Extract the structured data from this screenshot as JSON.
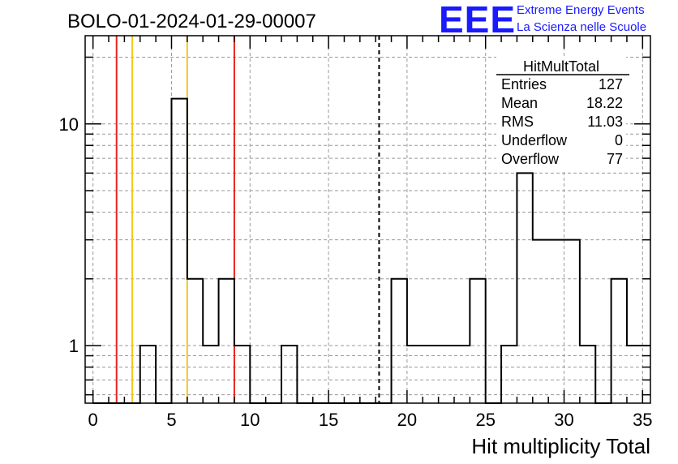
{
  "header": {
    "run_title": "BOLO-01-2024-01-29-00007",
    "logo_text": "EEE",
    "logo_line1": "Extreme Energy Events",
    "logo_line2": "La Scienza nelle Scuole"
  },
  "stats": {
    "title": "HitMultTotal",
    "rows": [
      {
        "label": "Entries",
        "value": "127"
      },
      {
        "label": "Mean",
        "value": "18.22"
      },
      {
        "label": "RMS",
        "value": "11.03"
      },
      {
        "label": "Underflow",
        "value": "0"
      },
      {
        "label": "Overflow",
        "value": "77"
      }
    ]
  },
  "chart_data": {
    "type": "histogram",
    "xlabel": "Hit multiplicity Total",
    "ylabel": "",
    "xlim": [
      -0.5,
      35.5
    ],
    "ylim": [
      0.55,
      25
    ],
    "log_y": true,
    "grid": true,
    "bin_width": 1,
    "bin_low_edges": [
      0,
      1,
      2,
      3,
      4,
      5,
      6,
      7,
      8,
      9,
      10,
      11,
      12,
      13,
      14,
      15,
      16,
      17,
      18,
      19,
      20,
      21,
      22,
      23,
      24,
      25,
      26,
      27,
      28,
      29,
      30,
      31,
      32,
      33,
      34,
      35
    ],
    "bin_centers": [
      0.5,
      1.5,
      2.5,
      3.5,
      4.5,
      5.5,
      6.5,
      7.5,
      8.5,
      9.5,
      10.5,
      11.5,
      12.5,
      13.5,
      14.5,
      15.5,
      16.5,
      17.5,
      18.5,
      19.5,
      20.5,
      21.5,
      22.5,
      23.5,
      24.5,
      25.5,
      26.5,
      27.5,
      28.5,
      29.5,
      30.5,
      31.5,
      32.5,
      33.5,
      34.5,
      35.5
    ],
    "counts": [
      0,
      0,
      0,
      1,
      0,
      13,
      2,
      1,
      2,
      1,
      0,
      0,
      1,
      0,
      0,
      0,
      0,
      0,
      0,
      2,
      1,
      1,
      1,
      1,
      2,
      0,
      1,
      6,
      3,
      3,
      3,
      1,
      0,
      2,
      1,
      1
    ],
    "x_ticks": [
      0,
      5,
      10,
      15,
      20,
      25,
      30,
      35
    ],
    "x_tick_labels": [
      "0",
      "5",
      "10",
      "15",
      "20",
      "25",
      "30",
      "35"
    ],
    "y_ticks": [
      1,
      10
    ],
    "y_tick_labels": [
      "1",
      "10"
    ],
    "vertical_lines": [
      {
        "x": 1.5,
        "color": "#e8241a",
        "style": "solid"
      },
      {
        "x": 2.5,
        "color": "#f2c81a",
        "style": "solid"
      },
      {
        "x": 6.0,
        "color": "#f2c81a",
        "style": "solid"
      },
      {
        "x": 9.0,
        "color": "#e8241a",
        "style": "solid"
      },
      {
        "x": 18.22,
        "color": "#000000",
        "style": "dashed"
      }
    ]
  }
}
